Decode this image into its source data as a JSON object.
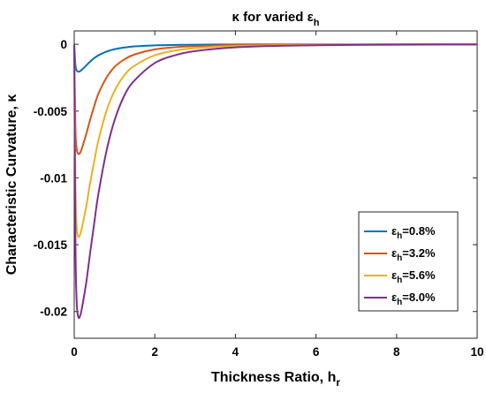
{
  "chart_data": {
    "type": "line",
    "title": {
      "main": "κ for varied ε",
      "sub": "h"
    },
    "xlabel": {
      "main": "Thickness Ratio, h",
      "sub": "r"
    },
    "ylabel": "Characteristic Curvature, κ",
    "xlim": [
      0,
      10
    ],
    "ylim": [
      -0.022,
      0.001
    ],
    "xticks": [
      0,
      2,
      4,
      6,
      8,
      10
    ],
    "xtick_labels": [
      "0",
      "2",
      "4",
      "6",
      "8",
      "10"
    ],
    "yticks": [
      0,
      -0.005,
      -0.01,
      -0.015,
      -0.02
    ],
    "ytick_labels": [
      "0",
      "-0.005",
      "-0.01",
      "-0.015",
      "-0.02"
    ],
    "grid": false,
    "legend_position": "center-right",
    "x": [
      0,
      0.03,
      0.06,
      0.1,
      0.15,
      0.2,
      0.3,
      0.4,
      0.5,
      0.6,
      0.8,
      1.0,
      1.25,
      1.5,
      2.0,
      2.5,
      3.0,
      4.0,
      5.0,
      6.0,
      8.0,
      10.0
    ],
    "series": [
      {
        "name": {
          "eps": "ε",
          "sub": "h",
          "value": "=0.8%"
        },
        "color": "#0072BD",
        "values": [
          0,
          -0.00155,
          -0.00195,
          -0.00205,
          -0.00201,
          -0.00188,
          -0.00158,
          -0.00128,
          -0.00103,
          -0.00083,
          -0.00055,
          -0.00037,
          -0.00024,
          -0.00016,
          -8e-05,
          -5e-05,
          -3e-05,
          -1.5e-05,
          -1e-05,
          -6e-06,
          -3e-06,
          -2e-06
        ]
      },
      {
        "name": {
          "eps": "ε",
          "sub": "h",
          "value": "=3.2%"
        },
        "color": "#D95319",
        "values": [
          0,
          -0.0062,
          -0.0078,
          -0.0082,
          -0.0081,
          -0.0077,
          -0.0067,
          -0.0056,
          -0.0046,
          -0.0037,
          -0.0025,
          -0.0017,
          -0.00112,
          -0.00076,
          -0.00038,
          -0.00022,
          -0.00014,
          -6e-05,
          -3e-05,
          -2e-05,
          -1e-05,
          -5e-06
        ]
      },
      {
        "name": {
          "eps": "ε",
          "sub": "h",
          "value": "=5.6%"
        },
        "color": "#EDB120",
        "values": [
          0,
          -0.0105,
          -0.0136,
          -0.0144,
          -0.0142,
          -0.0136,
          -0.0121,
          -0.0103,
          -0.0087,
          -0.0072,
          -0.005,
          -0.0035,
          -0.0023,
          -0.0016,
          -0.00082,
          -0.00047,
          -0.00029,
          -0.00013,
          -7e-05,
          -4e-05,
          -1.7e-05,
          -8e-06
        ]
      },
      {
        "name": {
          "eps": "ε",
          "sub": "h",
          "value": "=8.0%"
        },
        "color": "#7E2F8E",
        "values": [
          0,
          -0.0148,
          -0.0192,
          -0.0204,
          -0.0203,
          -0.0196,
          -0.0178,
          -0.0155,
          -0.0133,
          -0.0112,
          -0.008,
          -0.0057,
          -0.0038,
          -0.0027,
          -0.0014,
          -0.00082,
          -0.00051,
          -0.00023,
          -0.00012,
          -7e-05,
          -3e-05,
          -1.4e-05
        ]
      }
    ]
  }
}
